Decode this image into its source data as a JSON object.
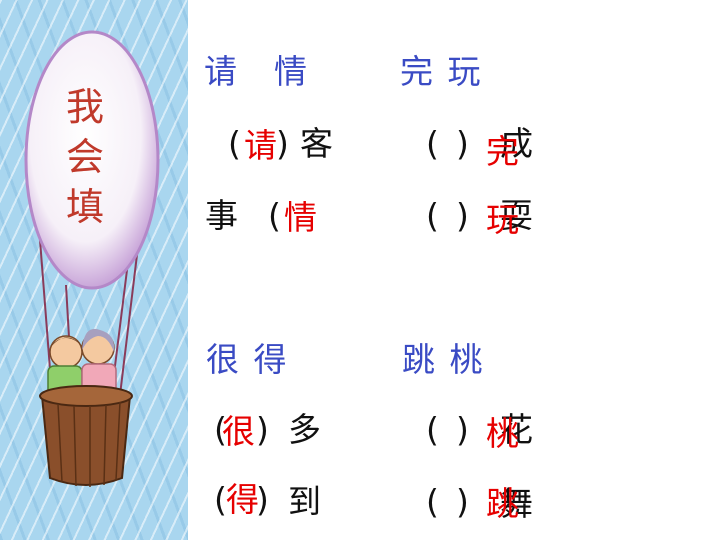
{
  "balloon": {
    "chars": [
      "我",
      "会",
      "填"
    ]
  },
  "groups": [
    {
      "heading": "请　情",
      "rows": [
        {
          "left": "(",
          "mid": ")",
          "right": "客",
          "answer": "请"
        },
        {
          "left": "事",
          "paren": "(",
          "answer": "情"
        }
      ]
    },
    {
      "heading": "完 玩",
      "rows": [
        {
          "left": "(",
          "mid": ")",
          "right": "成",
          "answer": "完"
        },
        {
          "left": "(",
          "mid": ")",
          "right": "耍",
          "answer": "玩"
        }
      ]
    },
    {
      "heading": "很 得",
      "rows": [
        {
          "left": "(",
          "mid": ")",
          "right": "多",
          "answer": "很"
        },
        {
          "left": "(",
          "mid": ")",
          "right": "到",
          "answer": "得"
        }
      ]
    },
    {
      "heading": "跳 桃",
      "rows": [
        {
          "left": "(",
          "mid": ")",
          "right": "花",
          "answer": "桃"
        },
        {
          "left": "(",
          "mid": ")",
          "right": "舞",
          "answer": "跳"
        }
      ]
    }
  ],
  "colors": {
    "heading": "#3a4bc4",
    "answer": "#e60000",
    "balloon_text": "#c0392b",
    "sky": "#a9d6ef"
  }
}
